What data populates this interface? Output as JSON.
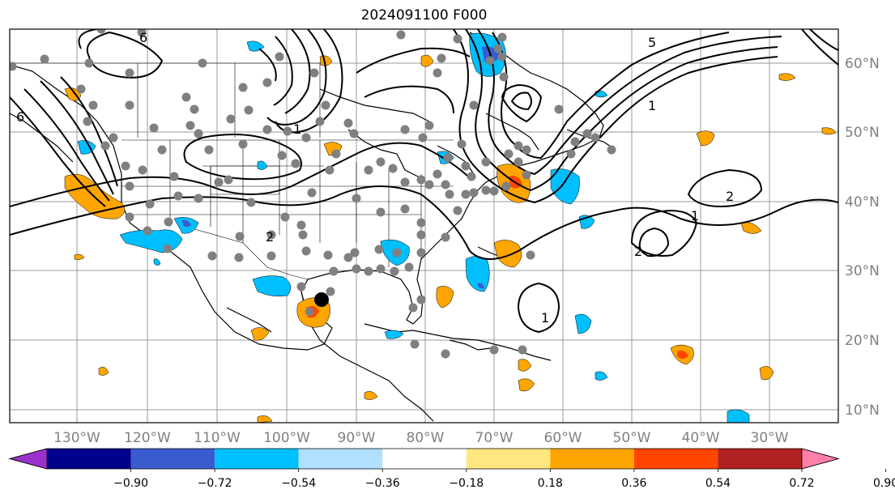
{
  "title": "2024091100 F000",
  "map": {
    "lon_ticks": [
      "130°W",
      "120°W",
      "110°W",
      "100°W",
      "90°W",
      "80°W",
      "70°W",
      "60°W",
      "50°W",
      "40°W",
      "30°W"
    ],
    "lat_ticks": [
      "10°N",
      "20°N",
      "30°N",
      "40°N",
      "50°N",
      "60°N"
    ],
    "contour_labels": [
      "1",
      "1",
      "1",
      "2",
      "2",
      "2",
      "5",
      "6",
      "6",
      "1"
    ],
    "shading_colors": [
      "#ffa500",
      "#ff4500",
      "#00bfff",
      "#1e90ff"
    ],
    "marker": "storm-center"
  },
  "colorbar": {
    "colors": [
      "#9932cc",
      "#00008b",
      "#3a5bcd",
      "#00bfff",
      "#b0e0ff",
      "#ffffff",
      "#ffe680",
      "#ffa500",
      "#ff4500",
      "#b22222",
      "#ff7fa8"
    ],
    "ticks": [
      "−0.90",
      "−0.72",
      "−0.54",
      "−0.36",
      "−0.18",
      "0.18",
      "0.36",
      "0.54",
      "0.72",
      "0.90"
    ]
  }
}
